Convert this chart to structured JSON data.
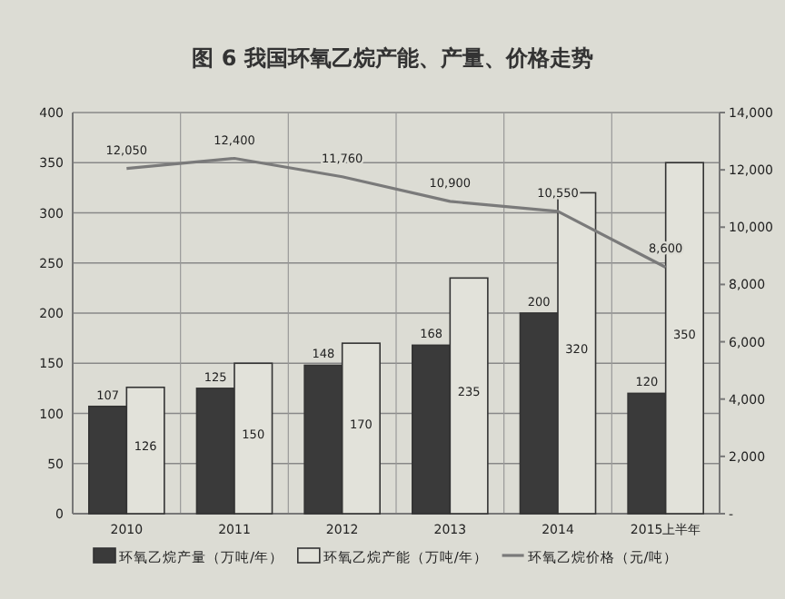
{
  "chart_data": {
    "type": "bar",
    "title": "图 6   我国环氧乙烷产能、产量、价格走势",
    "categories": [
      "2010",
      "2011",
      "2012",
      "2013",
      "2014",
      "2015上半年"
    ],
    "series": [
      {
        "name": "环氧乙烷产量（万吨/年）",
        "color": "#3a3a3a",
        "values": [
          107,
          125,
          148,
          168,
          200,
          120
        ]
      },
      {
        "name": "环氧乙烷产能（万吨/年）",
        "color": "#e2e2da",
        "values": [
          126,
          150,
          170,
          235,
          320,
          350
        ]
      },
      {
        "name": "环氧乙烷价格（元/吨）",
        "type": "line",
        "axis": "y2",
        "color": "#7a7a7a",
        "values": [
          12050,
          12400,
          11760,
          10900,
          10550,
          8600
        ],
        "value_labels": [
          "12,050",
          "12,400",
          "11,760",
          "10,900",
          "10,550",
          "8,600"
        ]
      }
    ],
    "ylim": [
      0,
      400
    ],
    "yticks": [
      0,
      50,
      100,
      150,
      200,
      250,
      300,
      350,
      400
    ],
    "y2lim": [
      0,
      14000
    ],
    "y2ticks": [
      {
        "value": 0,
        "label": "-"
      },
      {
        "value": 2000,
        "label": "2,000"
      },
      {
        "value": 4000,
        "label": "4,000"
      },
      {
        "value": 6000,
        "label": "6,000"
      },
      {
        "value": 8000,
        "label": "8,000"
      },
      {
        "value": 10000,
        "label": "10,000"
      },
      {
        "value": 12000,
        "label": "12,000"
      },
      {
        "value": 14000,
        "label": "14,000"
      }
    ],
    "grid": true,
    "legend": "bottom",
    "data_labels": true
  }
}
